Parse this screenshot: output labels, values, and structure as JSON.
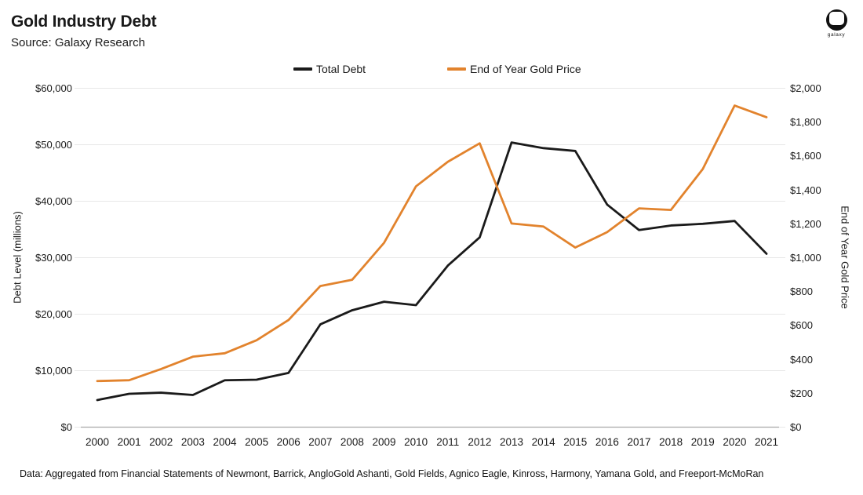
{
  "header": {
    "title": "Gold Industry Debt",
    "source": "Source: Galaxy Research",
    "logo_label": "galaxy"
  },
  "chart_data": {
    "type": "line",
    "title": "Gold Industry Debt",
    "subtitle": "Source: Galaxy Research",
    "grid": true,
    "legend_position": "top",
    "categories": [
      "2000",
      "2001",
      "2002",
      "2003",
      "2004",
      "2005",
      "2006",
      "2007",
      "2008",
      "2009",
      "2010",
      "2011",
      "2012",
      "2013",
      "2014",
      "2015",
      "2016",
      "2017",
      "2018",
      "2019",
      "2020",
      "2021"
    ],
    "series": [
      {
        "name": "Total Debt",
        "axis": "left",
        "color": "#1a1a1a",
        "values": [
          4800,
          5900,
          6100,
          5700,
          8300,
          8400,
          9600,
          18200,
          20700,
          22200,
          21600,
          28600,
          33600,
          50400,
          49400,
          48900,
          39400,
          34900,
          35700,
          36000,
          36500,
          30700
        ]
      },
      {
        "name": "End of Year Gold Price",
        "axis": "right",
        "color": "#e2832d",
        "values": [
          272,
          277,
          343,
          416,
          436,
          513,
          632,
          833,
          870,
          1088,
          1421,
          1566,
          1675,
          1202,
          1184,
          1060,
          1151,
          1291,
          1282,
          1523,
          1898,
          1829
        ]
      }
    ],
    "left_axis": {
      "label": "Debt Level (millions)",
      "min": 0,
      "max": 60000,
      "tick_step": 10000,
      "tick_labels": [
        "$0",
        "$10,000",
        "$20,000",
        "$30,000",
        "$40,000",
        "$50,000",
        "$60,000"
      ]
    },
    "right_axis": {
      "label": "End of Year Gold Price",
      "min": 0,
      "max": 2000,
      "tick_step": 200,
      "tick_labels": [
        "$0",
        "$200",
        "$400",
        "$600",
        "$800",
        "$1,000",
        "$1,200",
        "$1,400",
        "$1,600",
        "$1,800",
        "$2,000"
      ]
    },
    "footnote": "Data: Aggregated from Financial Statements of Newmont, Barrick, AngloGold Ashanti, Gold Fields, Agnico Eagle, Kinross, Harmony, Yamana Gold, and Freeport-McMoRan",
    "colors": {
      "grid": "#e7e7e7",
      "axis_line": "#a8a8a8",
      "text": "#1a1a1a"
    }
  }
}
